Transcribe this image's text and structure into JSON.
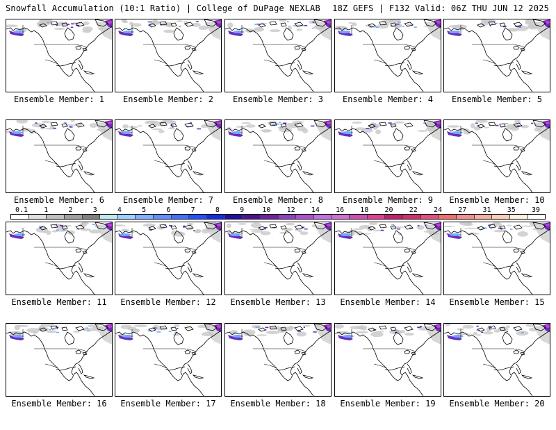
{
  "header": {
    "title_left": "Snowfall Accumulation (10:1 Ratio) | College of DuPage NEXLAB",
    "title_right": "18Z GEFS | F132 Valid: 06Z THU JUN 12 2025"
  },
  "colorbar": {
    "labels": [
      "0.1",
      "1",
      "2",
      "3",
      "4",
      "5",
      "6",
      "7",
      "8",
      "9",
      "10",
      "12",
      "14",
      "16",
      "18",
      "20",
      "22",
      "24",
      "27",
      "31",
      "35",
      "39"
    ],
    "colors": [
      "#ffffff",
      "#e0e0e0",
      "#c0c0c0",
      "#a0a0a0",
      "#808080",
      "#bfe8f0",
      "#a0d0ff",
      "#80b0ff",
      "#6090ff",
      "#4070ff",
      "#2050ff",
      "#1030e0",
      "#2010a0",
      "#501090",
      "#7020a0",
      "#9040c0",
      "#b050d0",
      "#c070e0",
      "#d070d0",
      "#d050b0",
      "#e04090",
      "#c02070",
      "#d03070",
      "#e05080",
      "#f07070",
      "#f09090",
      "#f8b0a0",
      "#fcd0b8",
      "#fff0e0",
      "#ffffff"
    ]
  },
  "members": [
    {
      "label": "Ensemble Member: 1"
    },
    {
      "label": "Ensemble Member: 2"
    },
    {
      "label": "Ensemble Member: 3"
    },
    {
      "label": "Ensemble Member: 4"
    },
    {
      "label": "Ensemble Member: 5"
    },
    {
      "label": "Ensemble Member: 6"
    },
    {
      "label": "Ensemble Member: 7"
    },
    {
      "label": "Ensemble Member: 8"
    },
    {
      "label": "Ensemble Member: 9"
    },
    {
      "label": "Ensemble Member: 10"
    },
    {
      "label": "Ensemble Member: 11"
    },
    {
      "label": "Ensemble Member: 12"
    },
    {
      "label": "Ensemble Member: 13"
    },
    {
      "label": "Ensemble Member: 14"
    },
    {
      "label": "Ensemble Member: 15"
    },
    {
      "label": "Ensemble Member: 16"
    },
    {
      "label": "Ensemble Member: 17"
    },
    {
      "label": "Ensemble Member: 18"
    },
    {
      "label": "Ensemble Member: 19"
    },
    {
      "label": "Ensemble Member: 20"
    }
  ],
  "snow_colors": {
    "light": "#c8c8c8",
    "mid": "#6fa8ff",
    "heavy": "#6a2cc0",
    "extreme": "#d040c0"
  }
}
